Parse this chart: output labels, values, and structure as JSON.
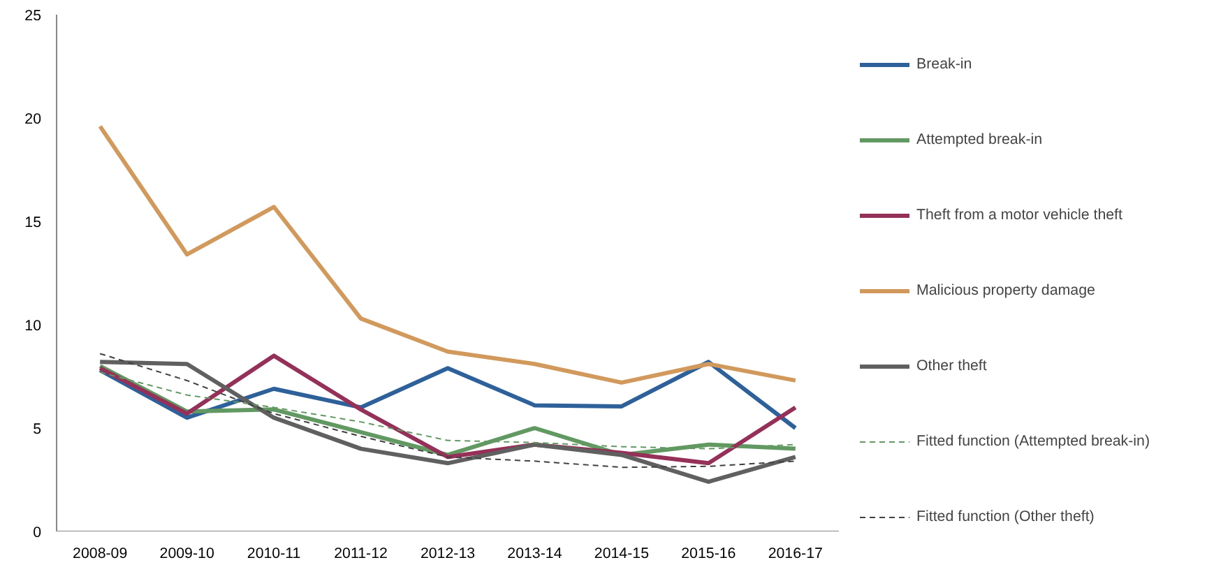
{
  "chart_data": {
    "type": "line",
    "categories": [
      "2008-09",
      "2009-10",
      "2010-11",
      "2011-12",
      "2012-13",
      "2013-14",
      "2014-15",
      "2015-16",
      "2016-17"
    ],
    "ylim": [
      0,
      25
    ],
    "yticks": [
      0,
      5,
      10,
      15,
      20,
      25
    ],
    "grid": false,
    "legend": "right",
    "series": [
      {
        "name": "Break-in",
        "color": "#2e6099",
        "values": [
          7.8,
          5.5,
          6.9,
          6.0,
          7.9,
          6.1,
          6.05,
          8.2,
          5.0
        ]
      },
      {
        "name": "Attempted break-in",
        "color": "#629962",
        "values": [
          8.0,
          5.8,
          5.9,
          4.8,
          3.7,
          5.0,
          3.7,
          4.2,
          4.0
        ]
      },
      {
        "name": "Theft from a motor vehicle theft",
        "color": "#953058",
        "values": [
          7.9,
          5.7,
          8.5,
          5.9,
          3.6,
          4.2,
          3.8,
          3.3,
          6.0
        ]
      },
      {
        "name": "Malicious property damage",
        "color": "#d19a5c",
        "values": [
          19.6,
          13.4,
          15.7,
          10.3,
          8.7,
          8.1,
          7.2,
          8.1,
          7.3
        ]
      },
      {
        "name": "Other theft",
        "color": "#606060",
        "values": [
          8.2,
          8.1,
          5.5,
          4.0,
          3.3,
          4.2,
          3.7,
          2.4,
          3.6
        ]
      },
      {
        "name": "Fitted function (Attempted break-in)",
        "color": "#629962",
        "line_style": "dashed",
        "values": [
          7.7,
          6.6,
          6.0,
          5.3,
          4.4,
          4.3,
          4.1,
          4.0,
          4.2
        ]
      },
      {
        "name": "Fitted function (Other theft)",
        "color": "#404040",
        "line_style": "dashed",
        "values": [
          8.6,
          7.3,
          5.7,
          4.6,
          3.6,
          3.4,
          3.1,
          3.15,
          3.4
        ]
      }
    ]
  }
}
